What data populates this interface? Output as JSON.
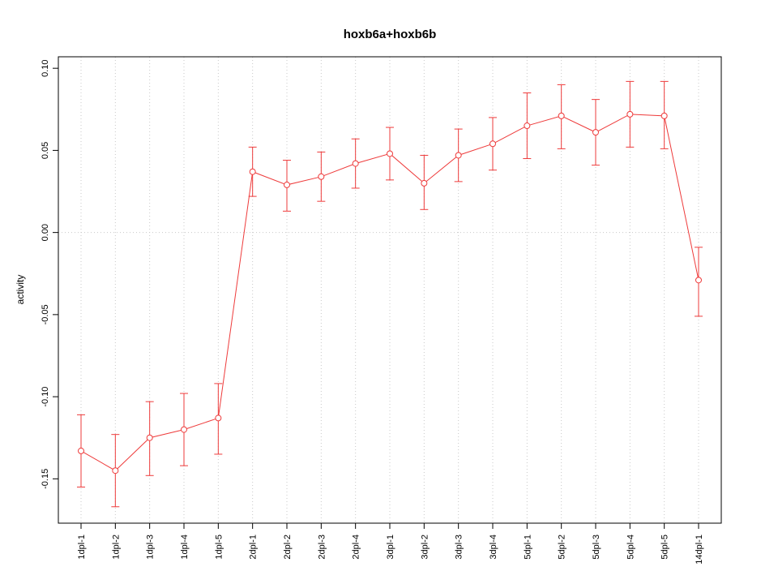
{
  "title": "hoxb6a+hoxb6b",
  "ylabel": "activity",
  "colors": {
    "series": "#ee3b3b",
    "grid": "#c8c8c8",
    "axis": "#000000",
    "background": "#ffffff"
  },
  "chart_data": {
    "type": "line",
    "title": "hoxb6a+hoxb6b",
    "xlabel": "",
    "ylabel": "activity",
    "grid": true,
    "legend": "none",
    "ylim": [
      -0.177,
      0.107
    ],
    "ytick_values": [
      0.1,
      0.05,
      0.0,
      -0.05,
      -0.1,
      -0.15
    ],
    "ytick_labels": [
      "0.10",
      "0.05",
      "0.00",
      "-0.05",
      "-0.10",
      "-0.15"
    ],
    "categories": [
      "1dpl-1",
      "1dpl-2",
      "1dpl-3",
      "1dpl-4",
      "1dpl-5",
      "2dpl-1",
      "2dpl-2",
      "2dpl-3",
      "2dpl-4",
      "3dpl-1",
      "3dpl-2",
      "3dpl-3",
      "3dpl-4",
      "5dpl-1",
      "5dpl-2",
      "5dpl-3",
      "5dpl-4",
      "5dpl-5",
      "14dpl-1"
    ],
    "series": [
      {
        "name": "activity",
        "marker": "open-circle",
        "values": [
          -0.133,
          -0.145,
          -0.125,
          -0.12,
          -0.113,
          0.037,
          0.029,
          0.034,
          0.042,
          0.048,
          0.03,
          0.047,
          0.054,
          0.065,
          0.071,
          0.061,
          0.072,
          0.071,
          -0.029
        ],
        "lower": [
          -0.155,
          -0.167,
          -0.148,
          -0.142,
          -0.135,
          0.022,
          0.013,
          0.019,
          0.027,
          0.032,
          0.014,
          0.031,
          0.038,
          0.045,
          0.051,
          0.041,
          0.052,
          0.051,
          -0.051
        ],
        "upper": [
          -0.111,
          -0.123,
          -0.103,
          -0.098,
          -0.092,
          0.052,
          0.044,
          0.049,
          0.057,
          0.064,
          0.047,
          0.063,
          0.07,
          0.085,
          0.09,
          0.081,
          0.092,
          0.092,
          -0.009
        ]
      }
    ],
    "zero_line": 0.0
  }
}
